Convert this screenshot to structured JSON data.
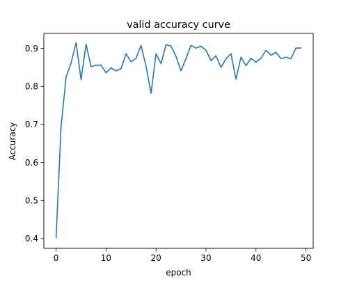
{
  "chart_data": {
    "type": "line",
    "title": "valid accuracy curve",
    "xlabel": "epoch",
    "ylabel": "Accuracy",
    "xlim": [
      -2.45,
      51.45
    ],
    "ylim": [
      0.3743,
      0.9396
    ],
    "xticks": [
      0,
      10,
      20,
      30,
      40,
      50
    ],
    "yticks": [
      0.4,
      0.5,
      0.6,
      0.7,
      0.8,
      0.9
    ],
    "xtick_labels": [
      "0",
      "10",
      "20",
      "30",
      "40",
      "50"
    ],
    "ytick_labels": [
      "0.4",
      "0.5",
      "0.6",
      "0.7",
      "0.8",
      "0.9"
    ],
    "grid": false,
    "series": [
      {
        "color": "#1f77b4",
        "x": [
          0,
          1,
          2,
          3,
          4,
          5,
          6,
          7,
          8,
          9,
          10,
          11,
          12,
          13,
          14,
          15,
          16,
          17,
          18,
          19,
          20,
          21,
          22,
          23,
          24,
          25,
          26,
          27,
          28,
          29,
          30,
          31,
          32,
          33,
          34,
          35,
          36,
          37,
          38,
          39,
          40,
          41,
          42,
          43,
          44,
          45,
          46,
          47,
          48,
          49
        ],
        "values": [
          0.402,
          0.695,
          0.825,
          0.862,
          0.915,
          0.818,
          0.911,
          0.852,
          0.856,
          0.856,
          0.836,
          0.849,
          0.841,
          0.847,
          0.886,
          0.865,
          0.874,
          0.908,
          0.853,
          0.782,
          0.886,
          0.86,
          0.91,
          0.906,
          0.879,
          0.841,
          0.874,
          0.908,
          0.901,
          0.906,
          0.895,
          0.868,
          0.881,
          0.85,
          0.873,
          0.886,
          0.819,
          0.877,
          0.855,
          0.874,
          0.864,
          0.874,
          0.895,
          0.882,
          0.89,
          0.873,
          0.877,
          0.873,
          0.901,
          0.901
        ]
      }
    ]
  }
}
